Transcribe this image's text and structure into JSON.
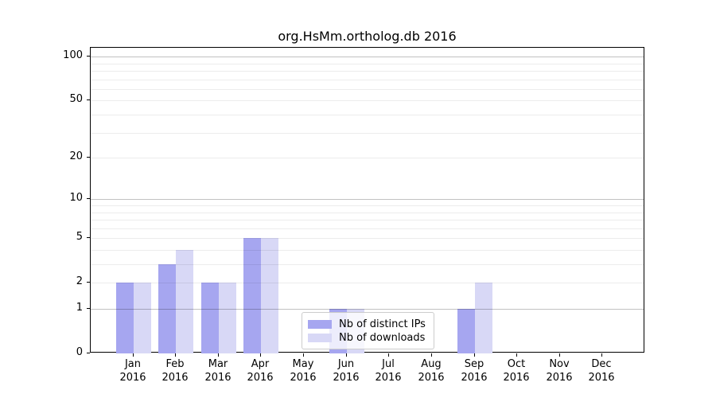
{
  "chart_data": {
    "type": "bar",
    "title": "org.HsMm.ortholog.db 2016",
    "categories": [
      "Jan",
      "Feb",
      "Mar",
      "Apr",
      "May",
      "Jun",
      "Jul",
      "Aug",
      "Sep",
      "Oct",
      "Nov",
      "Dec"
    ],
    "year": "2016",
    "series": [
      {
        "name": "Nb of distinct IPs",
        "color": "#a6a6f0",
        "values": [
          2,
          3,
          2,
          5,
          0,
          1,
          0,
          0,
          1,
          0,
          0,
          0
        ]
      },
      {
        "name": "Nb of downloads",
        "color": "#d8d8f6",
        "values": [
          2,
          4,
          2,
          5,
          0,
          1,
          0,
          0,
          2,
          0,
          0,
          0
        ]
      }
    ],
    "y_axis": {
      "scale": "log10(1+v)",
      "tick_values": [
        0,
        1,
        2,
        5,
        10,
        20,
        50,
        100
      ],
      "grid_minor_values": [
        2,
        3,
        4,
        5,
        6,
        7,
        8,
        9,
        20,
        30,
        40,
        50,
        60,
        70,
        80,
        90
      ],
      "grid_major_values": [
        1,
        10,
        100
      ]
    },
    "legend": {
      "position": "inside-bottom-center"
    },
    "colors": {
      "axis": "#000000",
      "text": "#000000",
      "background": "#ffffff"
    },
    "grid": true
  }
}
